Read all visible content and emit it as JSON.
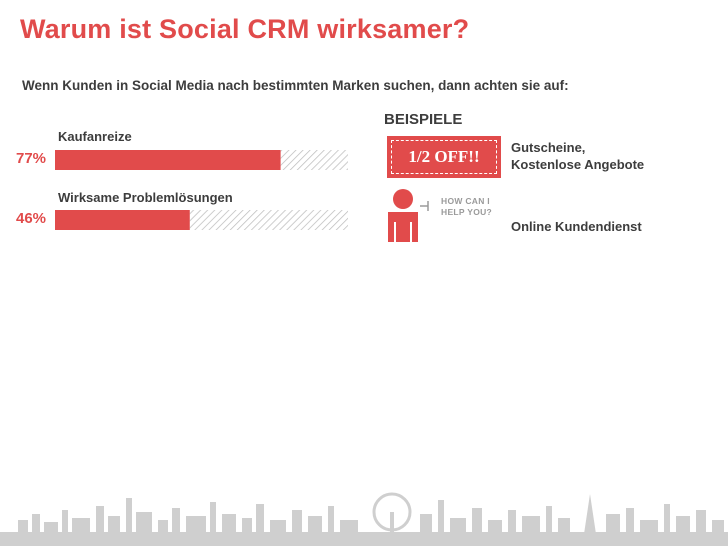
{
  "title": "Warum ist Social CRM wirksamer?",
  "subtitle": "Wenn Kunden in Social Media  nach bestimmten Marken suchen, dann achten sie auf:",
  "examples_heading": "BEISPIELE",
  "chart_data": {
    "type": "bar",
    "orientation": "horizontal",
    "categories": [
      "Kaufanreize",
      "Wirksame Problemlösungen"
    ],
    "values": [
      77,
      46
    ],
    "value_labels": [
      "77%",
      "46%"
    ],
    "unit": "%",
    "xlim": [
      0,
      100
    ],
    "bar_color": "#e14b4b",
    "remainder_style": "gray diagonal hatch"
  },
  "examples": [
    {
      "icon": "coupon-icon",
      "icon_text": "1/2 OFF!!",
      "label_line1": "Gutscheine,",
      "label_line2": "Kostenlose Angebote"
    },
    {
      "icon": "customer-service-person-icon",
      "icon_text_line1": "HOW CAN I",
      "icon_text_line2": "HELP YOU?",
      "label_line1": "Online Kundendienst"
    }
  ],
  "colors": {
    "accent": "#e14b4b",
    "text": "#3d3d3d",
    "hatch": "#bdbdbd"
  },
  "footer_decoration": "city-skyline-icon"
}
